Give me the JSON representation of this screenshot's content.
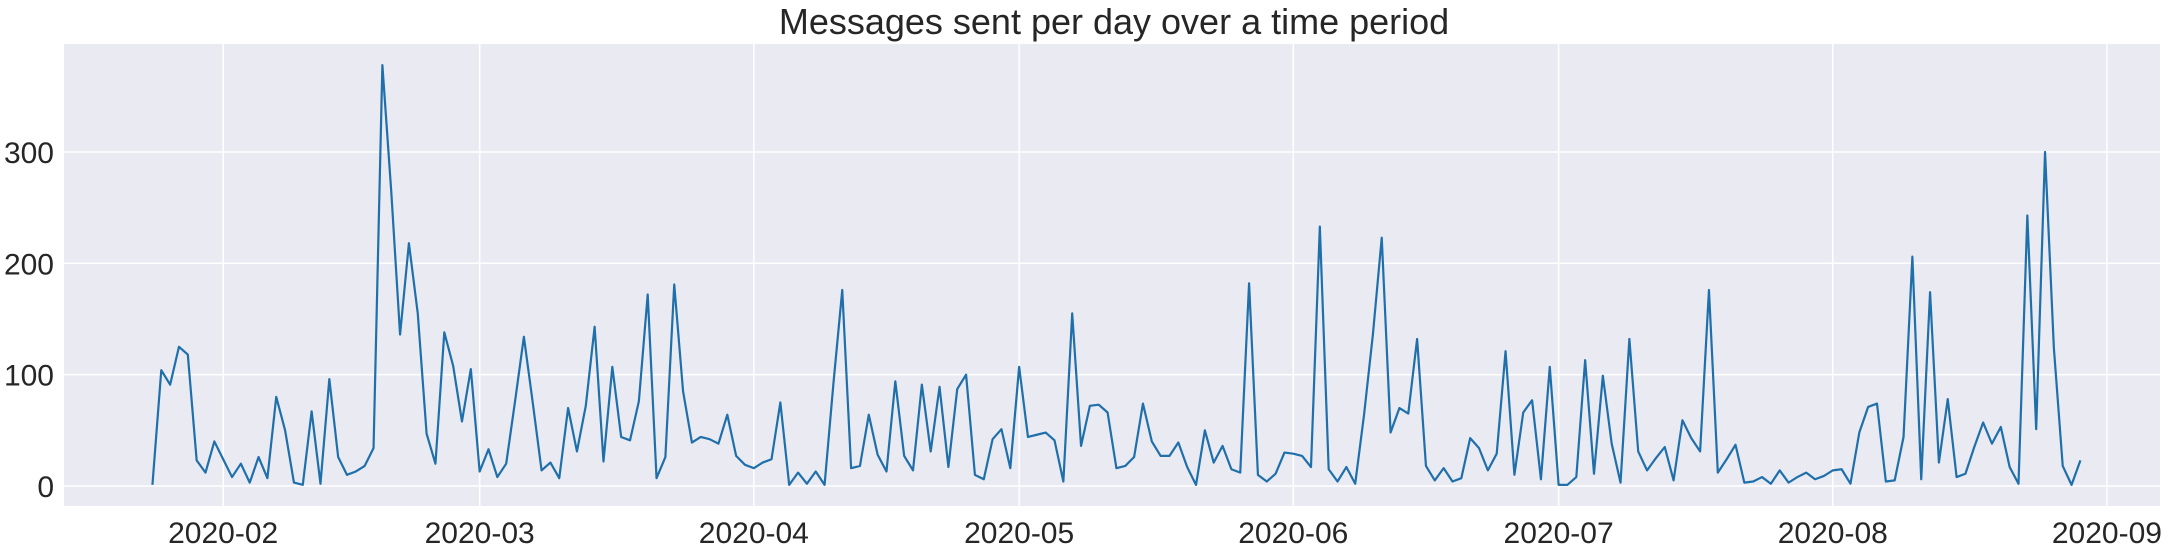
{
  "chart_data": {
    "type": "line",
    "title": "Messages sent per day over a time period",
    "xlabel": "",
    "ylabel": "",
    "x_start": "2020-01-24",
    "x_end": "2020-08-29",
    "xlim": [
      "2020-01-14",
      "2020-09-07"
    ],
    "ylim": [
      -18,
      397
    ],
    "yticks": [
      0,
      100,
      200,
      300
    ],
    "ytick_labels": [
      "0",
      "100",
      "200",
      "300"
    ],
    "xticks": [
      "2020-02-01",
      "2020-03-01",
      "2020-04-01",
      "2020-05-01",
      "2020-06-01",
      "2020-07-01",
      "2020-08-01",
      "2020-09-01"
    ],
    "xtick_labels": [
      "2020-02",
      "2020-03",
      "2020-04",
      "2020-05",
      "2020-06",
      "2020-07",
      "2020-08",
      "2020-09"
    ],
    "grid": true,
    "legend": "none",
    "colors": {
      "line": "#1f6fab",
      "plot_bg": "#eaeaf2",
      "grid": "#ffffff",
      "text": "#262626"
    },
    "series": [
      {
        "values": [
          1,
          104,
          91,
          125,
          118,
          23,
          12,
          40,
          24,
          8,
          20,
          3,
          26,
          7,
          80,
          50,
          3,
          1,
          67,
          2,
          96,
          26,
          10,
          13,
          18,
          34,
          378,
          265,
          136,
          218,
          155,
          47,
          20,
          138,
          108,
          58,
          105,
          13,
          33,
          8,
          20,
          76,
          134,
          75,
          14,
          21,
          7,
          70,
          31,
          72,
          143,
          22,
          107,
          44,
          41,
          76,
          172,
          7,
          26,
          181,
          85,
          39,
          44,
          42,
          38,
          64,
          27,
          19,
          16,
          21,
          24,
          75,
          1,
          12,
          2,
          13,
          1,
          92,
          176,
          16,
          18,
          64,
          28,
          13,
          94,
          27,
          14,
          91,
          31,
          89,
          17,
          87,
          100,
          10,
          6,
          42,
          51,
          16,
          107,
          44,
          46,
          48,
          41,
          4,
          155,
          36,
          72,
          73,
          66,
          16,
          18,
          26,
          74,
          40,
          27,
          27,
          39,
          17,
          1,
          50,
          21,
          36,
          15,
          12,
          182,
          10,
          4,
          11,
          30,
          29,
          27,
          17,
          233,
          15,
          4,
          17,
          2,
          64,
          136,
          223,
          48,
          70,
          65,
          132,
          18,
          5,
          16,
          4,
          7,
          43,
          34,
          14,
          29,
          121,
          10,
          66,
          77,
          6,
          107,
          1,
          1,
          8,
          113,
          11,
          99,
          38,
          3,
          132,
          31,
          14,
          25,
          35,
          5,
          59,
          43,
          31,
          176,
          12,
          24,
          37,
          3,
          4,
          8,
          2,
          14,
          3,
          8,
          12,
          6,
          9,
          14,
          15,
          2,
          48,
          71,
          74,
          4,
          5,
          44,
          206,
          6,
          174,
          21,
          78,
          8,
          11,
          35,
          57,
          38,
          53,
          17,
          2,
          243,
          51,
          300,
          124,
          18,
          1,
          23
        ]
      }
    ]
  }
}
